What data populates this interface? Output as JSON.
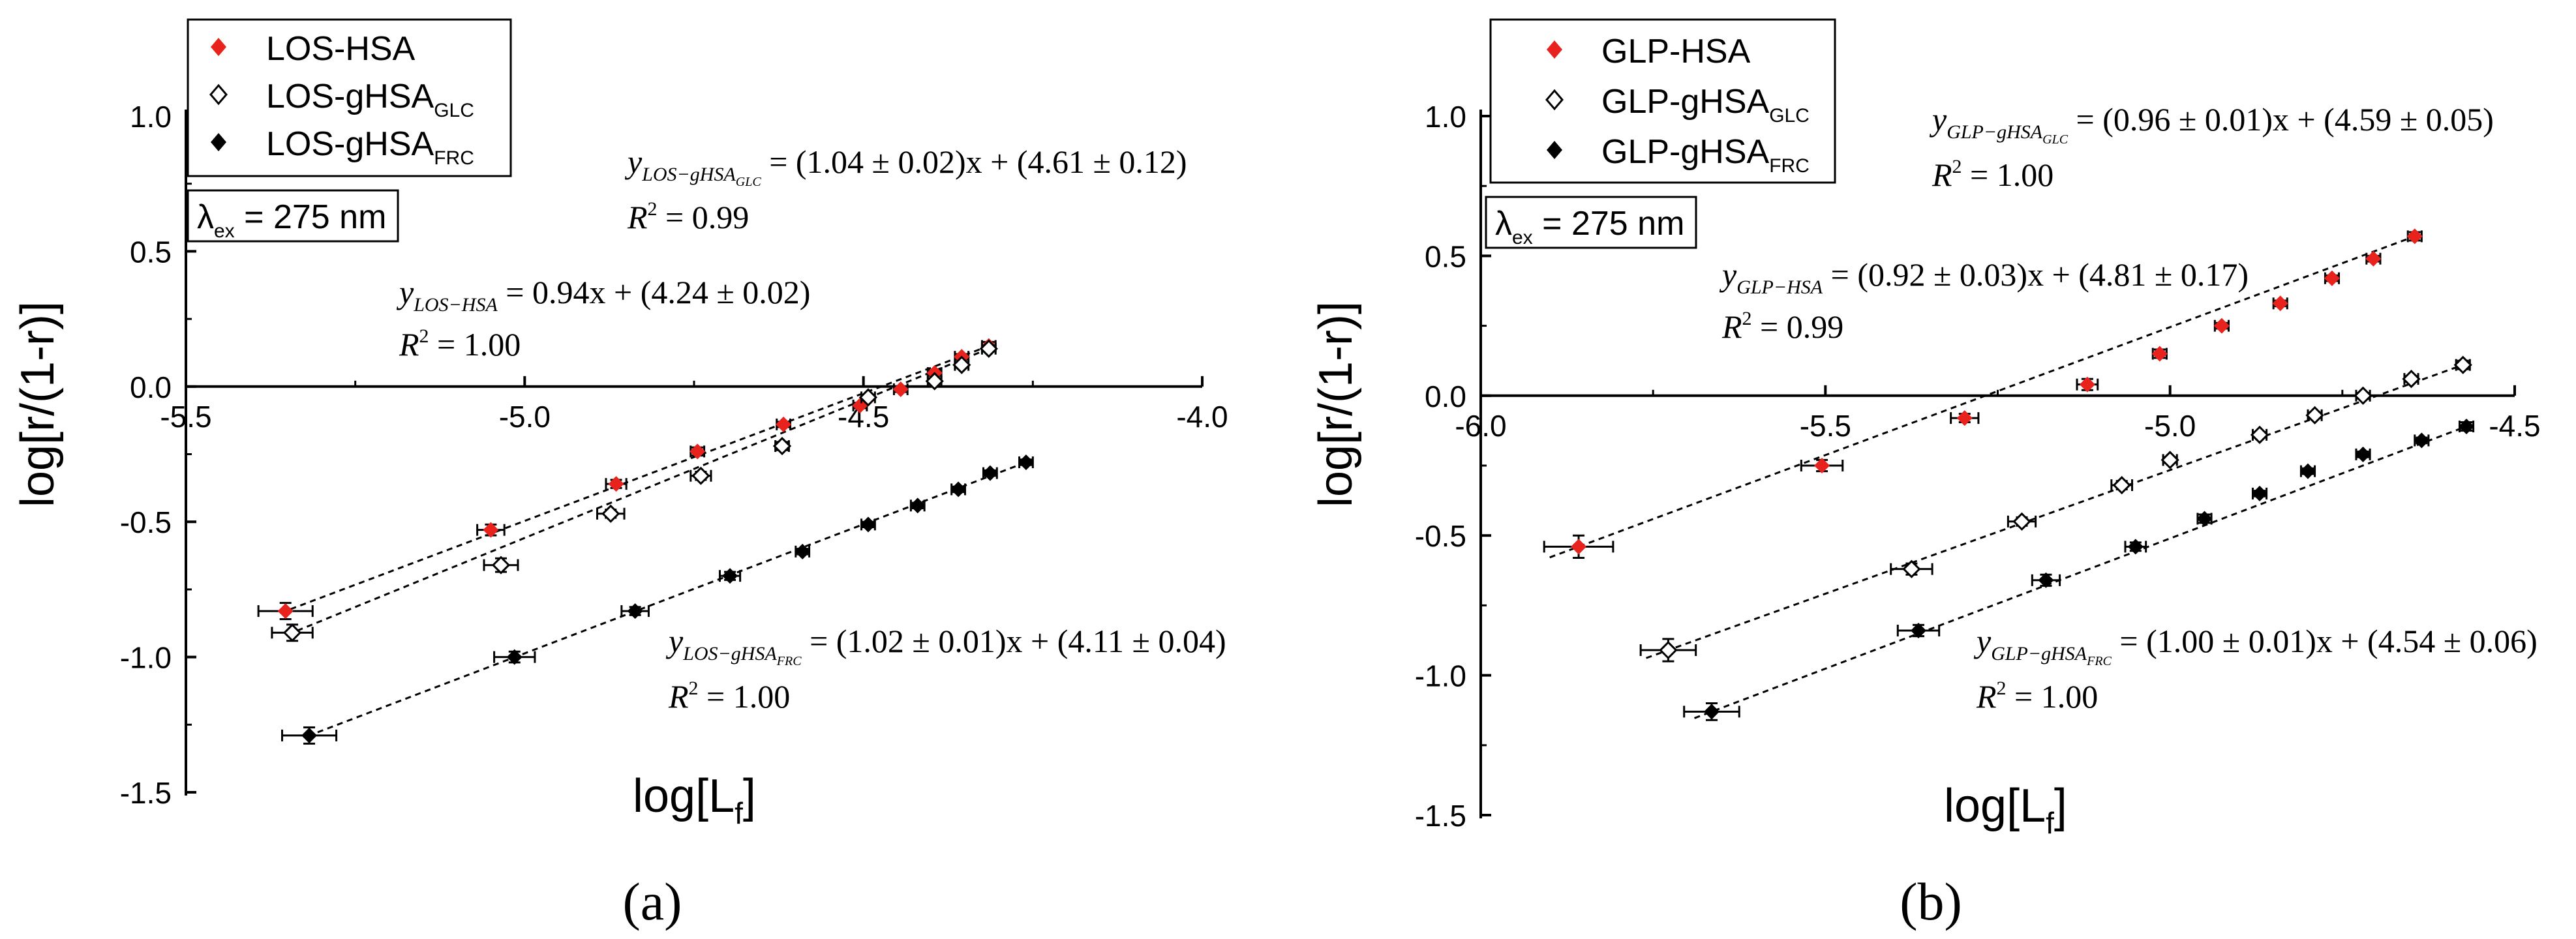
{
  "chart_data": [
    {
      "type": "scatter",
      "panel_label": "(a)",
      "xlabel_main": "log[L",
      "xlabel_sub": "f",
      "xlabel_close": "]",
      "ylabel": "log[r/(1-r)]",
      "xlim": [
        -5.5,
        -4.0
      ],
      "ylim": [
        -1.5,
        1.0
      ],
      "x_ticks": [
        {
          "v": -5.5,
          "label": "-5.5"
        },
        {
          "v": -5.0,
          "label": "-5.0"
        },
        {
          "v": -4.5,
          "label": "-4.5"
        },
        {
          "v": -4.0,
          "label": "-4.0"
        }
      ],
      "y_ticks": [
        {
          "v": 1.0,
          "label": "1.0"
        },
        {
          "v": 0.5,
          "label": "0.5"
        },
        {
          "v": 0.0,
          "label": "0.0"
        },
        {
          "v": -0.5,
          "label": "-0.5"
        },
        {
          "v": -1.0,
          "label": "-1.0"
        },
        {
          "v": -1.5,
          "label": "-1.5"
        }
      ],
      "lambda_box": {
        "symbol": "λ",
        "sub": "ex",
        "rest": " = 275 nm"
      },
      "legend": [
        {
          "name": "LOS-HSA",
          "sub": "",
          "marker": "filled",
          "color": "#e8221c"
        },
        {
          "name": "LOS-gHSA",
          "sub": "GLC",
          "marker": "open",
          "color": "#000000"
        },
        {
          "name": "LOS-gHSA",
          "sub": "FRC",
          "marker": "filled",
          "color": "#000000"
        }
      ],
      "series": [
        {
          "name": "LOS-HSA",
          "marker": "filled",
          "color": "#e8221c",
          "points": [
            {
              "x": -5.353,
              "y": -0.83,
              "xerr": 0.04,
              "yerr": 0.03
            },
            {
              "x": -5.05,
              "y": -0.53,
              "xerr": 0.02,
              "yerr": 0.02
            },
            {
              "x": -4.865,
              "y": -0.36,
              "xerr": 0.015,
              "yerr": 0.015
            },
            {
              "x": -4.745,
              "y": -0.24,
              "xerr": 0.01,
              "yerr": 0.015
            },
            {
              "x": -4.618,
              "y": -0.14,
              "xerr": 0.01,
              "yerr": 0.01
            },
            {
              "x": -4.505,
              "y": -0.07,
              "xerr": 0.01,
              "yerr": 0.01
            },
            {
              "x": -4.445,
              "y": -0.01,
              "xerr": 0.01,
              "yerr": 0.01
            },
            {
              "x": -4.395,
              "y": 0.05,
              "xerr": 0.01,
              "yerr": 0.01
            },
            {
              "x": -4.355,
              "y": 0.11,
              "xerr": 0.01,
              "yerr": 0.01
            },
            {
              "x": -4.315,
              "y": 0.15,
              "xerr": 0.01,
              "yerr": 0.015
            }
          ]
        },
        {
          "name": "LOS-gHSA_GLC",
          "marker": "open",
          "color": "#000000",
          "points": [
            {
              "x": -5.343,
              "y": -0.91,
              "xerr": 0.03,
              "yerr": 0.03
            },
            {
              "x": -5.035,
              "y": -0.66,
              "xerr": 0.025,
              "yerr": 0.025
            },
            {
              "x": -4.873,
              "y": -0.47,
              "xerr": 0.02,
              "yerr": 0.015
            },
            {
              "x": -4.74,
              "y": -0.33,
              "xerr": 0.015,
              "yerr": 0.015
            },
            {
              "x": -4.62,
              "y": -0.22,
              "xerr": 0.01,
              "yerr": 0.015
            },
            {
              "x": -4.493,
              "y": -0.04,
              "xerr": 0.01,
              "yerr": 0.01
            },
            {
              "x": -4.395,
              "y": 0.02,
              "xerr": 0.01,
              "yerr": 0.01
            },
            {
              "x": -4.355,
              "y": 0.08,
              "xerr": 0.01,
              "yerr": 0.01
            },
            {
              "x": -4.315,
              "y": 0.14,
              "xerr": 0.01,
              "yerr": 0.01
            }
          ]
        },
        {
          "name": "LOS-gHSA_FRC",
          "marker": "filled",
          "color": "#000000",
          "points": [
            {
              "x": -5.318,
              "y": -1.29,
              "xerr": 0.04,
              "yerr": 0.03
            },
            {
              "x": -5.015,
              "y": -1.0,
              "xerr": 0.03,
              "yerr": 0.02
            },
            {
              "x": -4.837,
              "y": -0.83,
              "xerr": 0.02,
              "yerr": 0.015
            },
            {
              "x": -4.697,
              "y": -0.7,
              "xerr": 0.015,
              "yerr": 0.015
            },
            {
              "x": -4.59,
              "y": -0.61,
              "xerr": 0.01,
              "yerr": 0.01
            },
            {
              "x": -4.493,
              "y": -0.51,
              "xerr": 0.01,
              "yerr": 0.01
            },
            {
              "x": -4.42,
              "y": -0.44,
              "xerr": 0.01,
              "yerr": 0.01
            },
            {
              "x": -4.36,
              "y": -0.38,
              "xerr": 0.01,
              "yerr": 0.01
            },
            {
              "x": -4.313,
              "y": -0.32,
              "xerr": 0.01,
              "yerr": 0.01
            },
            {
              "x": -4.26,
              "y": -0.28,
              "xerr": 0.01,
              "yerr": 0.01
            }
          ]
        }
      ],
      "fits": [
        {
          "series": "LOS-HSA",
          "slope": 0.94,
          "intercept": 4.24,
          "x_range": [
            -5.36,
            -4.31
          ]
        },
        {
          "series": "LOS-gHSA_GLC",
          "slope": 1.04,
          "intercept": 4.61,
          "x_range": [
            -5.35,
            -4.31
          ]
        },
        {
          "series": "LOS-gHSA_FRC",
          "slope": 1.02,
          "intercept": 4.11,
          "x_range": [
            -5.32,
            -4.25
          ]
        }
      ],
      "equations": [
        {
          "label_main": "y",
          "label_sub": "LOS−gHSA",
          "label_subsub": "GLC",
          "expr": " = (1.04 ± 0.02)x + (4.61 ± 0.12)",
          "r2_label": "R",
          "r2_sup": "2",
          "r2_value": " = 0.99"
        },
        {
          "label_main": "y",
          "label_sub": "LOS−HSA",
          "label_subsub": "",
          "expr": " = 0.94x + (4.24 ± 0.02)",
          "r2_label": "R",
          "r2_sup": "2",
          "r2_value": " = 1.00"
        },
        {
          "label_main": "y",
          "label_sub": "LOS−gHSA",
          "label_subsub": "FRC",
          "expr": " = (1.02 ± 0.01)x + (4.11 ± 0.04)",
          "r2_label": "R",
          "r2_sup": "2",
          "r2_value": " = 1.00"
        }
      ]
    },
    {
      "type": "scatter",
      "panel_label": "(b)",
      "xlabel_main": "log[L",
      "xlabel_sub": "f",
      "xlabel_close": "]",
      "ylabel": "log[r/(1-r)]",
      "xlim": [
        -6.0,
        -4.5
      ],
      "ylim": [
        -1.5,
        1.0
      ],
      "x_ticks": [
        {
          "v": -6.0,
          "label": "-6.0"
        },
        {
          "v": -5.5,
          "label": "-5.5"
        },
        {
          "v": -5.0,
          "label": "-5.0"
        },
        {
          "v": -4.5,
          "label": "-4.5"
        }
      ],
      "y_ticks": [
        {
          "v": 1.0,
          "label": "1.0"
        },
        {
          "v": 0.5,
          "label": "0.5"
        },
        {
          "v": 0.0,
          "label": "0.0"
        },
        {
          "v": -0.5,
          "label": "-0.5"
        },
        {
          "v": -1.0,
          "label": "-1.0"
        },
        {
          "v": -1.5,
          "label": "-1.5"
        }
      ],
      "lambda_box": {
        "symbol": "λ",
        "sub": "ex",
        "rest": " = 275 nm"
      },
      "legend": [
        {
          "name": "GLP-HSA",
          "sub": "",
          "marker": "filled",
          "color": "#e8221c"
        },
        {
          "name": "GLP-gHSA",
          "sub": "GLC",
          "marker": "open",
          "color": "#000000"
        },
        {
          "name": "GLP-gHSA",
          "sub": "FRC",
          "marker": "filled",
          "color": "#000000"
        }
      ],
      "series": [
        {
          "name": "GLP-HSA",
          "marker": "filled",
          "color": "#e8221c",
          "points": [
            {
              "x": -5.858,
              "y": -0.54,
              "xerr": 0.05,
              "yerr": 0.04
            },
            {
              "x": -5.505,
              "y": -0.25,
              "xerr": 0.03,
              "yerr": 0.02
            },
            {
              "x": -5.298,
              "y": -0.08,
              "xerr": 0.02,
              "yerr": 0.015
            },
            {
              "x": -5.12,
              "y": 0.04,
              "xerr": 0.015,
              "yerr": 0.02
            },
            {
              "x": -5.015,
              "y": 0.15,
              "xerr": 0.01,
              "yerr": 0.015
            },
            {
              "x": -4.925,
              "y": 0.25,
              "xerr": 0.01,
              "yerr": 0.01
            },
            {
              "x": -4.84,
              "y": 0.33,
              "xerr": 0.01,
              "yerr": 0.01
            },
            {
              "x": -4.765,
              "y": 0.42,
              "xerr": 0.01,
              "yerr": 0.01
            },
            {
              "x": -4.705,
              "y": 0.49,
              "xerr": 0.01,
              "yerr": 0.01
            },
            {
              "x": -4.645,
              "y": 0.57,
              "xerr": 0.01,
              "yerr": 0.015
            }
          ]
        },
        {
          "name": "GLP-gHSA_GLC",
          "marker": "open",
          "color": "#000000",
          "points": [
            {
              "x": -5.728,
              "y": -0.91,
              "xerr": 0.04,
              "yerr": 0.04
            },
            {
              "x": -5.375,
              "y": -0.62,
              "xerr": 0.03,
              "yerr": 0.02
            },
            {
              "x": -5.215,
              "y": -0.45,
              "xerr": 0.02,
              "yerr": 0.015
            },
            {
              "x": -5.07,
              "y": -0.32,
              "xerr": 0.015,
              "yerr": 0.015
            },
            {
              "x": -5.0,
              "y": -0.23,
              "xerr": 0.01,
              "yerr": 0.01
            },
            {
              "x": -4.87,
              "y": -0.14,
              "xerr": 0.01,
              "yerr": 0.01
            },
            {
              "x": -4.79,
              "y": -0.07,
              "xerr": 0.01,
              "yerr": 0.01
            },
            {
              "x": -4.72,
              "y": 0.0,
              "xerr": 0.01,
              "yerr": 0.01
            },
            {
              "x": -4.65,
              "y": 0.06,
              "xerr": 0.01,
              "yerr": 0.01
            },
            {
              "x": -4.575,
              "y": 0.11,
              "xerr": 0.01,
              "yerr": 0.015
            }
          ]
        },
        {
          "name": "GLP-gHSA_FRC",
          "marker": "filled",
          "color": "#000000",
          "points": [
            {
              "x": -5.665,
              "y": -1.13,
              "xerr": 0.04,
              "yerr": 0.03
            },
            {
              "x": -5.365,
              "y": -0.84,
              "xerr": 0.03,
              "yerr": 0.02
            },
            {
              "x": -5.18,
              "y": -0.66,
              "xerr": 0.02,
              "yerr": 0.02
            },
            {
              "x": -5.05,
              "y": -0.54,
              "xerr": 0.015,
              "yerr": 0.015
            },
            {
              "x": -4.95,
              "y": -0.44,
              "xerr": 0.01,
              "yerr": 0.015
            },
            {
              "x": -4.87,
              "y": -0.35,
              "xerr": 0.01,
              "yerr": 0.01
            },
            {
              "x": -4.8,
              "y": -0.27,
              "xerr": 0.01,
              "yerr": 0.01
            },
            {
              "x": -4.72,
              "y": -0.21,
              "xerr": 0.01,
              "yerr": 0.01
            },
            {
              "x": -4.635,
              "y": -0.16,
              "xerr": 0.01,
              "yerr": 0.01
            },
            {
              "x": -4.57,
              "y": -0.11,
              "xerr": 0.01,
              "yerr": 0.015
            }
          ]
        }
      ],
      "fits": [
        {
          "series": "GLP-HSA",
          "slope": 0.92,
          "intercept": 4.81,
          "x_range": [
            -5.9,
            -4.65
          ]
        },
        {
          "series": "GLP-gHSA_GLC",
          "slope": 0.96,
          "intercept": 4.59,
          "x_range": [
            -5.76,
            -4.57
          ]
        },
        {
          "series": "GLP-gHSA_FRC",
          "slope": 1.0,
          "intercept": 4.54,
          "x_range": [
            -5.69,
            -4.57
          ]
        }
      ],
      "equations": [
        {
          "label_main": "y",
          "label_sub": "GLP−gHSA",
          "label_subsub": "GLC",
          "expr": " = (0.96 ± 0.01)x + (4.59 ± 0.05)",
          "r2_label": "R",
          "r2_sup": "2",
          "r2_value": " = 1.00"
        },
        {
          "label_main": "y",
          "label_sub": "GLP−HSA",
          "label_subsub": "",
          "expr": " = (0.92 ± 0.03)x + (4.81 ± 0.17)",
          "r2_label": "R",
          "r2_sup": "2",
          "r2_value": " = 0.99"
        },
        {
          "label_main": "y",
          "label_sub": "GLP−gHSA",
          "label_subsub": "FRC",
          "expr": " = (1.00 ± 0.01)x + (4.54 ± 0.06)",
          "r2_label": "R",
          "r2_sup": "2",
          "r2_value": " = 1.00"
        }
      ]
    }
  ]
}
